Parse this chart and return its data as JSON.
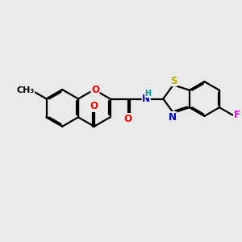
{
  "bg_color": "#eaeaea",
  "bond_color": "#000000",
  "bond_width": 1.6,
  "dbo": 0.055,
  "atom_colors": {
    "O": "#ff0000",
    "N": "#0000cc",
    "S": "#bbaa00",
    "F": "#ee00ee",
    "H": "#009999"
  },
  "font_size": 8.5
}
